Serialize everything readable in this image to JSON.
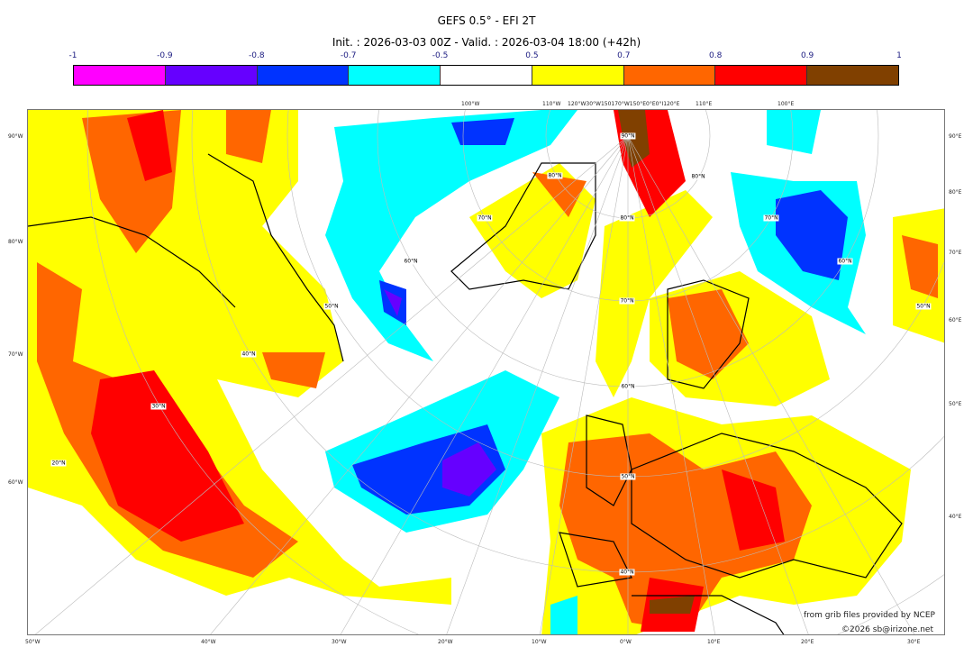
{
  "title": "GEFS 0.5° - EFI 2T",
  "subtitle": "Init. : 2026-03-03 00Z - Valid. : 2026-03-04 18:00 (+42h)",
  "colorbar": {
    "ticks": [
      "-1",
      "-0.9",
      "-0.8",
      "-0.7",
      "-0.5",
      "0.5",
      "0.7",
      "0.8",
      "0.9",
      "1"
    ],
    "colors": [
      "#ff00ff",
      "#6600ff",
      "#0033ff",
      "#00ffff",
      "#ffffff",
      "#ffff00",
      "#ff6600",
      "#ff0000",
      "#804000"
    ]
  },
  "axes": {
    "left": [
      "90°W",
      "80°W",
      "70°W",
      "60°W"
    ],
    "right": [
      "90°E",
      "80°E",
      "70°E",
      "60°E",
      "50°E",
      "40°E"
    ],
    "bottom": [
      "50°W",
      "40°W",
      "30°W",
      "20°W",
      "10°W",
      "0°W",
      "10°E",
      "20°E",
      "30°E"
    ],
    "top": [
      "100°W",
      "110°W",
      "120°W30°W150170°W150°E0°E0°I120°E",
      "110°E",
      "100°E"
    ]
  },
  "lat_labels": [
    "90°N",
    "80°N",
    "70°N",
    "60°N",
    "50°N",
    "40°N",
    "60°N",
    "50°N",
    "40°N",
    "30°N",
    "20°N",
    "80°N",
    "70°N",
    "80°N",
    "70°N",
    "60°N",
    "50°N"
  ],
  "credits": {
    "source": "from grib files provided by NCEP",
    "copyright": "©2026 sb@irizone.net"
  }
}
